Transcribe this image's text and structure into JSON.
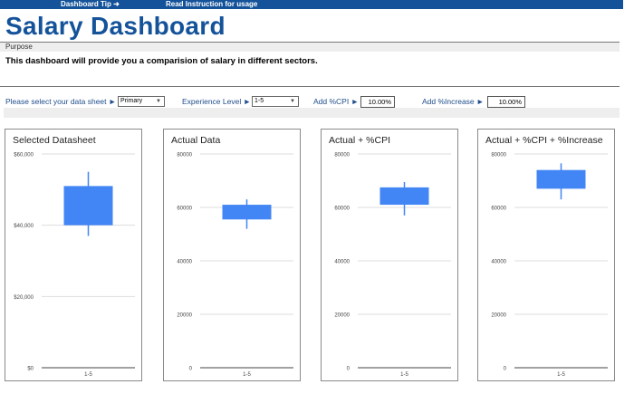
{
  "topbar": {
    "tip_label": "Dashboard Tip",
    "tip_arrow": "➜",
    "instruction_label": "Read Instruction for usage"
  },
  "title": "Salary Dashboard",
  "purpose": {
    "label": "Purpose",
    "text": "This dashboard will provide you a comparision of salary in different sectors."
  },
  "controls": {
    "data_sheet_label": "Please select your data sheet ►",
    "data_sheet_value": "Primary",
    "experience_label": "Experience Level ►",
    "experience_value": "1-5",
    "cpi_label": "Add %CPI ►",
    "cpi_value": "10.00%",
    "increase_label": "Add %Increase ►",
    "increase_value": "10.00%"
  },
  "colors": {
    "accent": "#14539a",
    "candle": "#4285f4",
    "label_blue": "#1f4e8c"
  },
  "chart_data": [
    {
      "type": "candlestick",
      "title": "Selected Datasheet",
      "categories": [
        "1-5"
      ],
      "ylim": [
        0,
        60000
      ],
      "yticks": [
        0,
        20000,
        40000,
        60000
      ],
      "ytick_labels": [
        "$0",
        "$20,000",
        "$40,000",
        "$60,000"
      ],
      "series": [
        {
          "low": 37000,
          "open": 40000,
          "close": 51000,
          "high": 55000
        }
      ]
    },
    {
      "type": "candlestick",
      "title": "Actual Data",
      "categories": [
        "1-5"
      ],
      "ylim": [
        0,
        80000
      ],
      "yticks": [
        0,
        20000,
        40000,
        60000,
        80000
      ],
      "ytick_labels": [
        "0",
        "20000",
        "40000",
        "60000",
        "80000"
      ],
      "series": [
        {
          "low": 52000,
          "open": 55500,
          "close": 61000,
          "high": 63000
        }
      ]
    },
    {
      "type": "candlestick",
      "title": "Actual + %CPI",
      "categories": [
        "1-5"
      ],
      "ylim": [
        0,
        80000
      ],
      "yticks": [
        0,
        20000,
        40000,
        60000,
        80000
      ],
      "ytick_labels": [
        "0",
        "20000",
        "40000",
        "60000",
        "80000"
      ],
      "series": [
        {
          "low": 57000,
          "open": 61000,
          "close": 67500,
          "high": 69500
        }
      ]
    },
    {
      "type": "candlestick",
      "title": "Actual + %CPI + %Increase",
      "categories": [
        "1-5"
      ],
      "ylim": [
        0,
        80000
      ],
      "yticks": [
        0,
        20000,
        40000,
        60000,
        80000
      ],
      "ytick_labels": [
        "0",
        "20000",
        "40000",
        "60000",
        "80000"
      ],
      "series": [
        {
          "low": 63000,
          "open": 67000,
          "close": 74000,
          "high": 76500
        }
      ]
    }
  ]
}
